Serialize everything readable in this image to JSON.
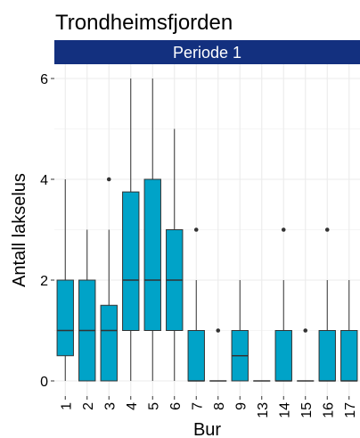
{
  "chart_data": {
    "type": "box",
    "title": "Trondheimsfjorden",
    "facet_label": "Periode 1",
    "xlabel": "Bur",
    "ylabel": "Antall lakselus",
    "ylim": [
      0,
      6
    ],
    "yticks": [
      0,
      2,
      4,
      6
    ],
    "grid": true,
    "colors": {
      "box_fill": "#00A3C8",
      "strip_fill": "#13307F",
      "grid": "#EBEBEB",
      "line": "#333333"
    },
    "categories": [
      "1",
      "2",
      "3",
      "4",
      "5",
      "6",
      "7",
      "8",
      "9",
      "13",
      "14",
      "15",
      "16",
      "17"
    ],
    "boxes": [
      {
        "category": "1",
        "min": 0,
        "q1": 0.5,
        "median": 1,
        "q3": 2,
        "max": 4,
        "outliers": []
      },
      {
        "category": "2",
        "min": 0,
        "q1": 0,
        "median": 1,
        "q3": 2,
        "max": 3,
        "outliers": []
      },
      {
        "category": "3",
        "min": 0,
        "q1": 0,
        "median": 1,
        "q3": 1.5,
        "max": 3,
        "outliers": [
          4
        ]
      },
      {
        "category": "4",
        "min": 0,
        "q1": 1,
        "median": 2,
        "q3": 3.75,
        "max": 6,
        "outliers": []
      },
      {
        "category": "5",
        "min": 0,
        "q1": 1,
        "median": 2,
        "q3": 4,
        "max": 6,
        "outliers": []
      },
      {
        "category": "6",
        "min": 0,
        "q1": 1,
        "median": 2,
        "q3": 3,
        "max": 5,
        "outliers": []
      },
      {
        "category": "7",
        "min": 0,
        "q1": 0,
        "median": 0,
        "q3": 1,
        "max": 2,
        "outliers": [
          3
        ]
      },
      {
        "category": "8",
        "min": 0,
        "q1": 0,
        "median": 0,
        "q3": 0,
        "max": 0,
        "outliers": [
          1
        ]
      },
      {
        "category": "9",
        "min": 0,
        "q1": 0,
        "median": 0.5,
        "q3": 1,
        "max": 2,
        "outliers": []
      },
      {
        "category": "13",
        "min": 0,
        "q1": 0,
        "median": 0,
        "q3": 0,
        "max": 0,
        "outliers": []
      },
      {
        "category": "14",
        "min": 0,
        "q1": 0,
        "median": 0,
        "q3": 1,
        "max": 2,
        "outliers": [
          3
        ]
      },
      {
        "category": "15",
        "min": 0,
        "q1": 0,
        "median": 0,
        "q3": 0,
        "max": 0,
        "outliers": [
          1
        ]
      },
      {
        "category": "16",
        "min": 0,
        "q1": 0,
        "median": 0,
        "q3": 1,
        "max": 2,
        "outliers": [
          3
        ]
      },
      {
        "category": "17",
        "min": 0,
        "q1": 0,
        "median": 0,
        "q3": 1,
        "max": 2,
        "outliers": []
      }
    ]
  }
}
